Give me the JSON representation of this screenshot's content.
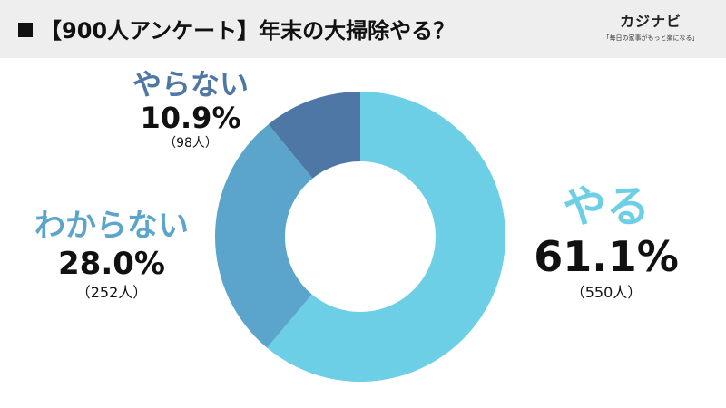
{
  "header": {
    "title": "【900人アンケート】年末の大掃除やる？",
    "logo_name": "カジナビ",
    "logo_tagline": "「毎日の家事がもっと楽になる」"
  },
  "chart_data": {
    "type": "pie",
    "title": "【900人アンケート】年末の大掃除やる？",
    "total_respondents": 900,
    "slices": [
      {
        "name": "やる",
        "percent": 61.1,
        "percent_label": "61.1%",
        "count": 550,
        "count_label": "（550人）",
        "color": "#6dcfe5"
      },
      {
        "name": "わからない",
        "percent": 28.0,
        "percent_label": "28.0%",
        "count": 252,
        "count_label": "（252人）",
        "color": "#5ba4cb"
      },
      {
        "name": "やらない",
        "percent": 10.9,
        "percent_label": "10.9%",
        "count": 98,
        "count_label": "（98人）",
        "color": "#4e77a5"
      }
    ]
  }
}
